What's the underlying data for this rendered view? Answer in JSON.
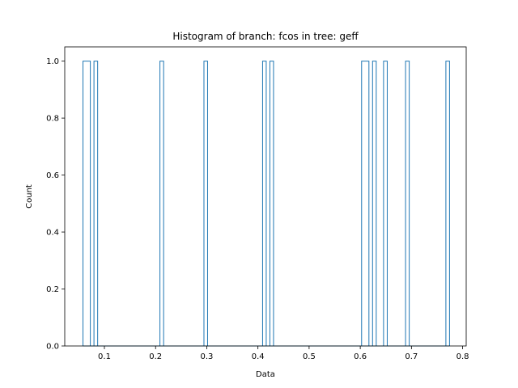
{
  "chart_data": {
    "type": "histogram",
    "title": "Histogram of branch: fcos in tree: geff",
    "xlabel": "Data",
    "ylabel": "Count",
    "xlim": [
      0.0225,
      0.807
    ],
    "ylim": [
      0.0,
      1.05
    ],
    "x_ticks": [
      {
        "value": 0.1,
        "label": "0.1"
      },
      {
        "value": 0.2,
        "label": "0.2"
      },
      {
        "value": 0.3,
        "label": "0.3"
      },
      {
        "value": 0.4,
        "label": "0.4"
      },
      {
        "value": 0.5,
        "label": "0.5"
      },
      {
        "value": 0.6,
        "label": "0.6"
      },
      {
        "value": 0.7,
        "label": "0.7"
      },
      {
        "value": 0.8,
        "label": "0.8"
      }
    ],
    "y_ticks": [
      {
        "value": 0.0,
        "label": "0.0"
      },
      {
        "value": 0.2,
        "label": "0.2"
      },
      {
        "value": 0.4,
        "label": "0.4"
      },
      {
        "value": 0.6,
        "label": "0.6"
      },
      {
        "value": 0.8,
        "label": "0.8"
      },
      {
        "value": 1.0,
        "label": "1.0"
      }
    ],
    "grid": false,
    "legend": "none",
    "series_color": "#1f77b4",
    "bins": {
      "start": 0.0581,
      "width": 0.00716,
      "count": 100
    },
    "nonzero_bins": [
      {
        "x0": 0.0581,
        "x1": 0.0653,
        "count": 1
      },
      {
        "x0": 0.0653,
        "x1": 0.0725,
        "count": 1
      },
      {
        "x0": 0.0796,
        "x1": 0.0868,
        "count": 1
      },
      {
        "x0": 0.2085,
        "x1": 0.2157,
        "count": 1
      },
      {
        "x0": 0.2945,
        "x1": 0.3016,
        "count": 1
      },
      {
        "x0": 0.4091,
        "x1": 0.4162,
        "count": 1
      },
      {
        "x0": 0.4234,
        "x1": 0.4305,
        "count": 1
      },
      {
        "x0": 0.6026,
        "x1": 0.6097,
        "count": 1
      },
      {
        "x0": 0.6097,
        "x1": 0.6169,
        "count": 1
      },
      {
        "x0": 0.624,
        "x1": 0.6312,
        "count": 1
      },
      {
        "x0": 0.6455,
        "x1": 0.6527,
        "count": 1
      },
      {
        "x0": 0.6885,
        "x1": 0.6957,
        "count": 1
      },
      {
        "x0": 0.7673,
        "x1": 0.7744,
        "count": 1
      }
    ]
  }
}
